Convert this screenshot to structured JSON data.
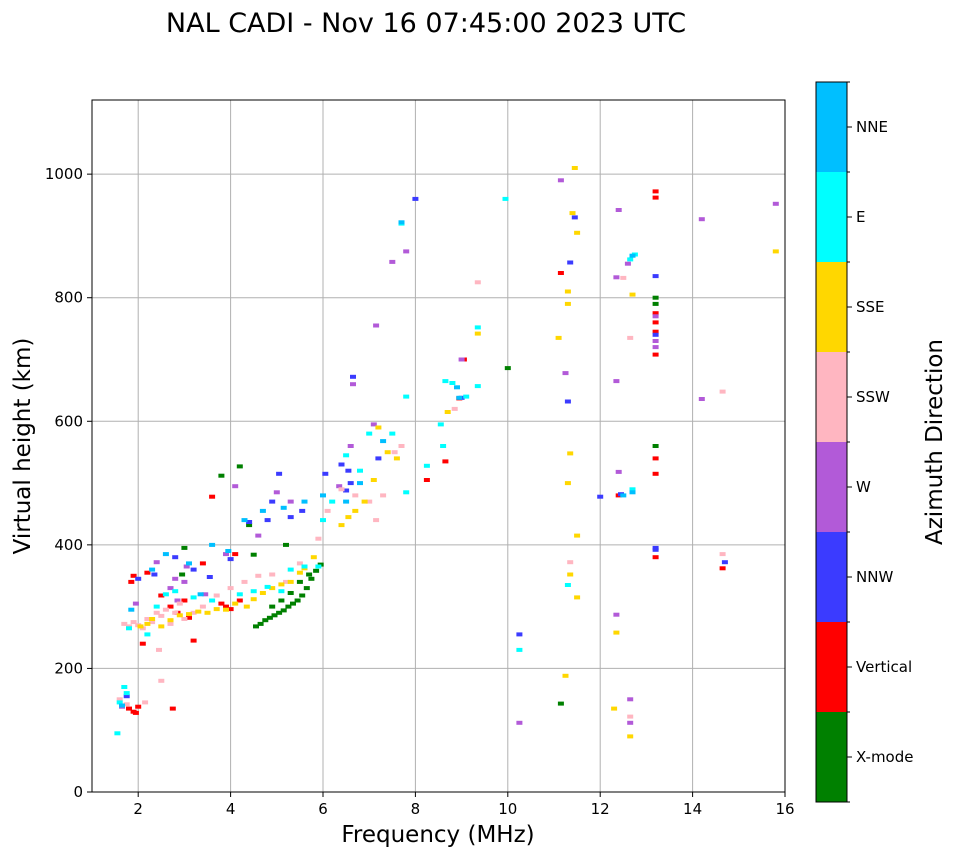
{
  "chart_data": {
    "type": "scatter",
    "title": "NAL CADI - Nov 16 07:45:00 2023 UTC",
    "xlabel": "Frequency (MHz)",
    "ylabel": "Virtual height (km)",
    "xlim": [
      1,
      16
    ],
    "ylim": [
      0,
      1120
    ],
    "xticks": [
      2,
      4,
      6,
      8,
      10,
      12,
      14,
      16
    ],
    "yticks": [
      0,
      200,
      400,
      600,
      800,
      1000
    ],
    "grid": true,
    "colorbar": {
      "label": "Azimuth Direction",
      "categories": [
        {
          "name": "X-mode",
          "color": "#008000"
        },
        {
          "name": "Vertical",
          "color": "#ff0000"
        },
        {
          "name": "NNW",
          "color": "#3b3bff"
        },
        {
          "name": "W",
          "color": "#b25ad8"
        },
        {
          "name": "SSW",
          "color": "#ffb6c1"
        },
        {
          "name": "SSE",
          "color": "#ffd700"
        },
        {
          "name": "E",
          "color": "#00ffff"
        },
        {
          "name": "NNE",
          "color": "#00bfff"
        }
      ]
    },
    "series": [
      {
        "name": "X-mode",
        "points": [
          [
            4.55,
            268
          ],
          [
            4.65,
            272
          ],
          [
            4.75,
            278
          ],
          [
            4.85,
            282
          ],
          [
            4.95,
            286
          ],
          [
            5.05,
            290
          ],
          [
            5.15,
            294
          ],
          [
            5.25,
            300
          ],
          [
            5.35,
            305
          ],
          [
            5.45,
            310
          ],
          [
            5.55,
            318
          ],
          [
            5.65,
            330
          ],
          [
            5.75,
            345
          ],
          [
            5.85,
            358
          ],
          [
            5.95,
            368
          ],
          [
            4.9,
            300
          ],
          [
            5.1,
            310
          ],
          [
            5.3,
            322
          ],
          [
            5.5,
            340
          ],
          [
            5.7,
            352
          ],
          [
            11.15,
            143
          ],
          [
            13.2,
            800
          ],
          [
            13.2,
            790
          ],
          [
            13.2,
            560
          ],
          [
            10.0,
            686
          ],
          [
            4.2,
            527
          ],
          [
            3.8,
            512
          ],
          [
            5.2,
            400
          ],
          [
            4.4,
            432
          ],
          [
            4.5,
            384
          ],
          [
            3.0,
            395
          ],
          [
            2.95,
            352
          ]
        ]
      },
      {
        "name": "Vertical",
        "points": [
          [
            1.8,
            135
          ],
          [
            1.9,
            130
          ],
          [
            1.95,
            128
          ],
          [
            2.0,
            138
          ],
          [
            1.9,
            350
          ],
          [
            1.85,
            340
          ],
          [
            2.2,
            355
          ],
          [
            2.5,
            318
          ],
          [
            2.7,
            300
          ],
          [
            2.85,
            290
          ],
          [
            3.0,
            310
          ],
          [
            3.1,
            282
          ],
          [
            3.4,
            370
          ],
          [
            3.8,
            305
          ],
          [
            3.9,
            300
          ],
          [
            4.0,
            296
          ],
          [
            4.1,
            385
          ],
          [
            4.2,
            310
          ],
          [
            3.6,
            478
          ],
          [
            8.25,
            505
          ],
          [
            8.65,
            535
          ],
          [
            8.95,
            637
          ],
          [
            9.05,
            700
          ],
          [
            11.15,
            840
          ],
          [
            12.4,
            480
          ],
          [
            13.2,
            972
          ],
          [
            13.2,
            962
          ],
          [
            13.2,
            775
          ],
          [
            13.2,
            760
          ],
          [
            13.2,
            745
          ],
          [
            13.2,
            708
          ],
          [
            13.2,
            540
          ],
          [
            13.2,
            515
          ],
          [
            13.2,
            380
          ],
          [
            14.65,
            362
          ],
          [
            2.75,
            135
          ],
          [
            2.1,
            240
          ],
          [
            3.2,
            245
          ]
        ]
      },
      {
        "name": "NNW",
        "points": [
          [
            1.75,
            155
          ],
          [
            2.0,
            345
          ],
          [
            2.35,
            352
          ],
          [
            2.8,
            380
          ],
          [
            3.2,
            360
          ],
          [
            3.55,
            348
          ],
          [
            4.0,
            377
          ],
          [
            4.4,
            437
          ],
          [
            4.9,
            470
          ],
          [
            5.3,
            445
          ],
          [
            5.55,
            455
          ],
          [
            6.05,
            515
          ],
          [
            6.4,
            530
          ],
          [
            6.55,
            520
          ],
          [
            6.6,
            500
          ],
          [
            6.65,
            672
          ],
          [
            7.2,
            540
          ],
          [
            8.0,
            960
          ],
          [
            9.0,
            638
          ],
          [
            10.25,
            255
          ],
          [
            11.3,
            632
          ],
          [
            11.45,
            930
          ],
          [
            11.35,
            857
          ],
          [
            12.0,
            478
          ],
          [
            12.45,
            482
          ],
          [
            13.2,
            835
          ],
          [
            13.2,
            395
          ],
          [
            13.2,
            392
          ],
          [
            13.2,
            740
          ],
          [
            14.7,
            372
          ],
          [
            5.05,
            515
          ],
          [
            6.5,
            488
          ],
          [
            4.8,
            440
          ]
        ]
      },
      {
        "name": "W",
        "points": [
          [
            1.65,
            138
          ],
          [
            1.95,
            305
          ],
          [
            2.4,
            372
          ],
          [
            2.7,
            330
          ],
          [
            2.8,
            345
          ],
          [
            2.85,
            310
          ],
          [
            3.0,
            340
          ],
          [
            3.05,
            365
          ],
          [
            3.45,
            320
          ],
          [
            3.9,
            385
          ],
          [
            4.1,
            495
          ],
          [
            4.6,
            415
          ],
          [
            5.0,
            485
          ],
          [
            5.3,
            470
          ],
          [
            6.35,
            495
          ],
          [
            6.6,
            560
          ],
          [
            6.65,
            660
          ],
          [
            7.1,
            595
          ],
          [
            7.15,
            755
          ],
          [
            7.5,
            858
          ],
          [
            7.8,
            875
          ],
          [
            9.0,
            700
          ],
          [
            11.15,
            990
          ],
          [
            11.25,
            678
          ],
          [
            12.4,
            942
          ],
          [
            12.35,
            833
          ],
          [
            12.35,
            665
          ],
          [
            12.4,
            518
          ],
          [
            12.35,
            287
          ],
          [
            12.65,
            150
          ],
          [
            12.65,
            112
          ],
          [
            12.6,
            855
          ],
          [
            13.2,
            770
          ],
          [
            13.2,
            730
          ],
          [
            13.2,
            720
          ],
          [
            14.2,
            927
          ],
          [
            14.2,
            636
          ],
          [
            10.25,
            112
          ],
          [
            15.8,
            952
          ]
        ]
      },
      {
        "name": "SSW",
        "points": [
          [
            1.6,
            150
          ],
          [
            1.75,
            142
          ],
          [
            2.15,
            145
          ],
          [
            1.7,
            272
          ],
          [
            1.8,
            268
          ],
          [
            1.9,
            275
          ],
          [
            2.0,
            270
          ],
          [
            2.1,
            265
          ],
          [
            2.2,
            280
          ],
          [
            2.3,
            275
          ],
          [
            2.4,
            290
          ],
          [
            2.5,
            285
          ],
          [
            2.6,
            295
          ],
          [
            2.7,
            272
          ],
          [
            2.8,
            290
          ],
          [
            2.9,
            305
          ],
          [
            3.0,
            280
          ],
          [
            3.2,
            290
          ],
          [
            3.4,
            300
          ],
          [
            3.7,
            318
          ],
          [
            4.0,
            330
          ],
          [
            4.3,
            340
          ],
          [
            4.6,
            350
          ],
          [
            4.9,
            352
          ],
          [
            5.2,
            340
          ],
          [
            5.5,
            370
          ],
          [
            5.9,
            410
          ],
          [
            6.1,
            455
          ],
          [
            6.4,
            490
          ],
          [
            6.7,
            480
          ],
          [
            7.0,
            470
          ],
          [
            7.15,
            440
          ],
          [
            7.3,
            480
          ],
          [
            7.55,
            550
          ],
          [
            7.7,
            560
          ],
          [
            8.85,
            620
          ],
          [
            9.35,
            825
          ],
          [
            12.65,
            735
          ],
          [
            12.65,
            122
          ],
          [
            12.5,
            832
          ],
          [
            14.65,
            385
          ],
          [
            14.65,
            648
          ],
          [
            2.5,
            180
          ],
          [
            2.45,
            230
          ],
          [
            11.35,
            372
          ]
        ]
      },
      {
        "name": "SSE",
        "points": [
          [
            2.05,
            268
          ],
          [
            2.2,
            272
          ],
          [
            2.3,
            280
          ],
          [
            2.5,
            268
          ],
          [
            2.7,
            278
          ],
          [
            2.9,
            286
          ],
          [
            3.1,
            288
          ],
          [
            3.3,
            292
          ],
          [
            3.5,
            290
          ],
          [
            3.7,
            296
          ],
          [
            3.9,
            295
          ],
          [
            4.1,
            305
          ],
          [
            4.35,
            300
          ],
          [
            4.5,
            312
          ],
          [
            4.7,
            322
          ],
          [
            4.9,
            330
          ],
          [
            5.1,
            336
          ],
          [
            5.3,
            340
          ],
          [
            5.5,
            355
          ],
          [
            5.6,
            362
          ],
          [
            5.8,
            380
          ],
          [
            6.4,
            432
          ],
          [
            6.55,
            445
          ],
          [
            6.7,
            455
          ],
          [
            6.9,
            470
          ],
          [
            7.1,
            505
          ],
          [
            7.2,
            590
          ],
          [
            7.4,
            550
          ],
          [
            7.6,
            540
          ],
          [
            8.7,
            615
          ],
          [
            9.35,
            742
          ],
          [
            11.1,
            735
          ],
          [
            11.3,
            810
          ],
          [
            11.3,
            790
          ],
          [
            11.35,
            548
          ],
          [
            11.3,
            500
          ],
          [
            11.35,
            352
          ],
          [
            11.25,
            188
          ],
          [
            11.45,
            1010
          ],
          [
            11.4,
            937
          ],
          [
            11.5,
            905
          ],
          [
            11.5,
            415
          ],
          [
            11.5,
            315
          ],
          [
            12.7,
            805
          ],
          [
            12.3,
            135
          ],
          [
            12.35,
            258
          ],
          [
            12.65,
            90
          ],
          [
            15.8,
            875
          ]
        ]
      },
      {
        "name": "E",
        "points": [
          [
            1.6,
            145
          ],
          [
            1.7,
            170
          ],
          [
            1.55,
            95
          ],
          [
            1.75,
            160
          ],
          [
            1.8,
            265
          ],
          [
            2.2,
            255
          ],
          [
            2.4,
            300
          ],
          [
            2.6,
            320
          ],
          [
            2.8,
            325
          ],
          [
            3.2,
            315
          ],
          [
            3.6,
            310
          ],
          [
            4.2,
            320
          ],
          [
            4.5,
            325
          ],
          [
            4.8,
            332
          ],
          [
            5.1,
            325
          ],
          [
            5.3,
            360
          ],
          [
            5.6,
            365
          ],
          [
            5.9,
            365
          ],
          [
            6.0,
            440
          ],
          [
            6.2,
            470
          ],
          [
            6.5,
            545
          ],
          [
            6.8,
            520
          ],
          [
            7.0,
            580
          ],
          [
            7.5,
            580
          ],
          [
            7.8,
            640
          ],
          [
            8.25,
            528
          ],
          [
            8.55,
            595
          ],
          [
            8.6,
            560
          ],
          [
            8.65,
            665
          ],
          [
            8.8,
            662
          ],
          [
            9.1,
            640
          ],
          [
            9.35,
            657
          ],
          [
            9.35,
            752
          ],
          [
            9.95,
            960
          ],
          [
            10.25,
            230
          ],
          [
            11.3,
            335
          ],
          [
            12.7,
            490
          ],
          [
            12.75,
            870
          ],
          [
            12.65,
            862
          ],
          [
            7.7,
            920
          ],
          [
            7.8,
            485
          ]
        ]
      },
      {
        "name": "NNE",
        "points": [
          [
            1.65,
            140
          ],
          [
            1.85,
            295
          ],
          [
            2.3,
            360
          ],
          [
            2.6,
            385
          ],
          [
            3.1,
            370
          ],
          [
            3.35,
            320
          ],
          [
            3.6,
            400
          ],
          [
            3.95,
            390
          ],
          [
            4.3,
            440
          ],
          [
            4.7,
            455
          ],
          [
            5.15,
            460
          ],
          [
            5.6,
            470
          ],
          [
            6.0,
            480
          ],
          [
            6.5,
            470
          ],
          [
            6.8,
            500
          ],
          [
            7.3,
            568
          ],
          [
            7.7,
            922
          ],
          [
            8.9,
            655
          ],
          [
            8.95,
            638
          ],
          [
            12.7,
            868
          ],
          [
            12.7,
            485
          ],
          [
            12.5,
            480
          ]
        ]
      }
    ]
  }
}
